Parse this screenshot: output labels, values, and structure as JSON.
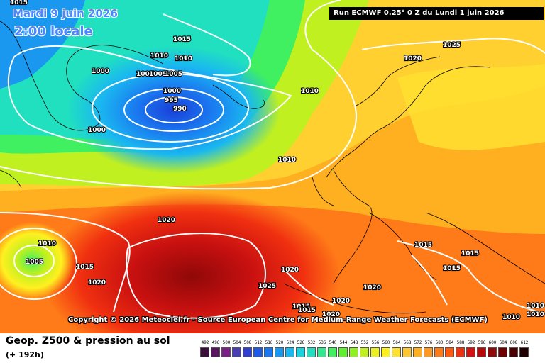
{
  "header": {
    "date_text": "Mardi 9 juin 2026",
    "time_text": "2:00 locale",
    "run_text": "Run ECMWF 0.25° 0 Z du Lundi 1 juin 2026"
  },
  "copyright": "Copyright © 2026 Meteociel.fr - Source European Centre for Medium-Range Weather Forecasts (ECMWF)",
  "footer": {
    "title": "Geop. Z500 & pression au sol",
    "subtitle": "(+ 192h)"
  },
  "legend": {
    "labels": [
      "492",
      "496",
      "500",
      "504",
      "508",
      "512",
      "516",
      "520",
      "524",
      "528",
      "532",
      "536",
      "540",
      "544",
      "548",
      "552",
      "556",
      "560",
      "564",
      "568",
      "572",
      "576",
      "580",
      "584",
      "588",
      "592",
      "596",
      "600",
      "604",
      "608",
      "612"
    ],
    "colors": [
      "#3b0d3b",
      "#5a1560",
      "#7a2088",
      "#4a3fb0",
      "#2f3fd0",
      "#1e5ae8",
      "#1a78f0",
      "#1a98f0",
      "#1ab8f0",
      "#1ad2e0",
      "#20e0c0",
      "#30e890",
      "#40f060",
      "#60f030",
      "#90f020",
      "#c0f020",
      "#e8f020",
      "#fff020",
      "#ffe030",
      "#ffc830",
      "#ffb020",
      "#ff9820",
      "#ff7a18",
      "#ff5a10",
      "#f03010",
      "#d81010",
      "#b80808",
      "#900808",
      "#700000",
      "#4a0000",
      "#200000"
    ]
  },
  "pressure_labels": [
    "1015",
    "1015",
    "1010",
    "1010",
    "1005",
    "1005",
    "1005",
    "1000",
    "1000",
    "1000",
    "995",
    "990",
    "1010",
    "1020",
    "1025",
    "1010",
    "1020",
    "1010",
    "1005",
    "1015",
    "1020",
    "1025",
    "1020",
    "1015",
    "1015",
    "1015",
    "1020",
    "1015",
    "1015",
    "1020",
    "1020",
    "1010",
    "1010",
    "1010"
  ]
}
